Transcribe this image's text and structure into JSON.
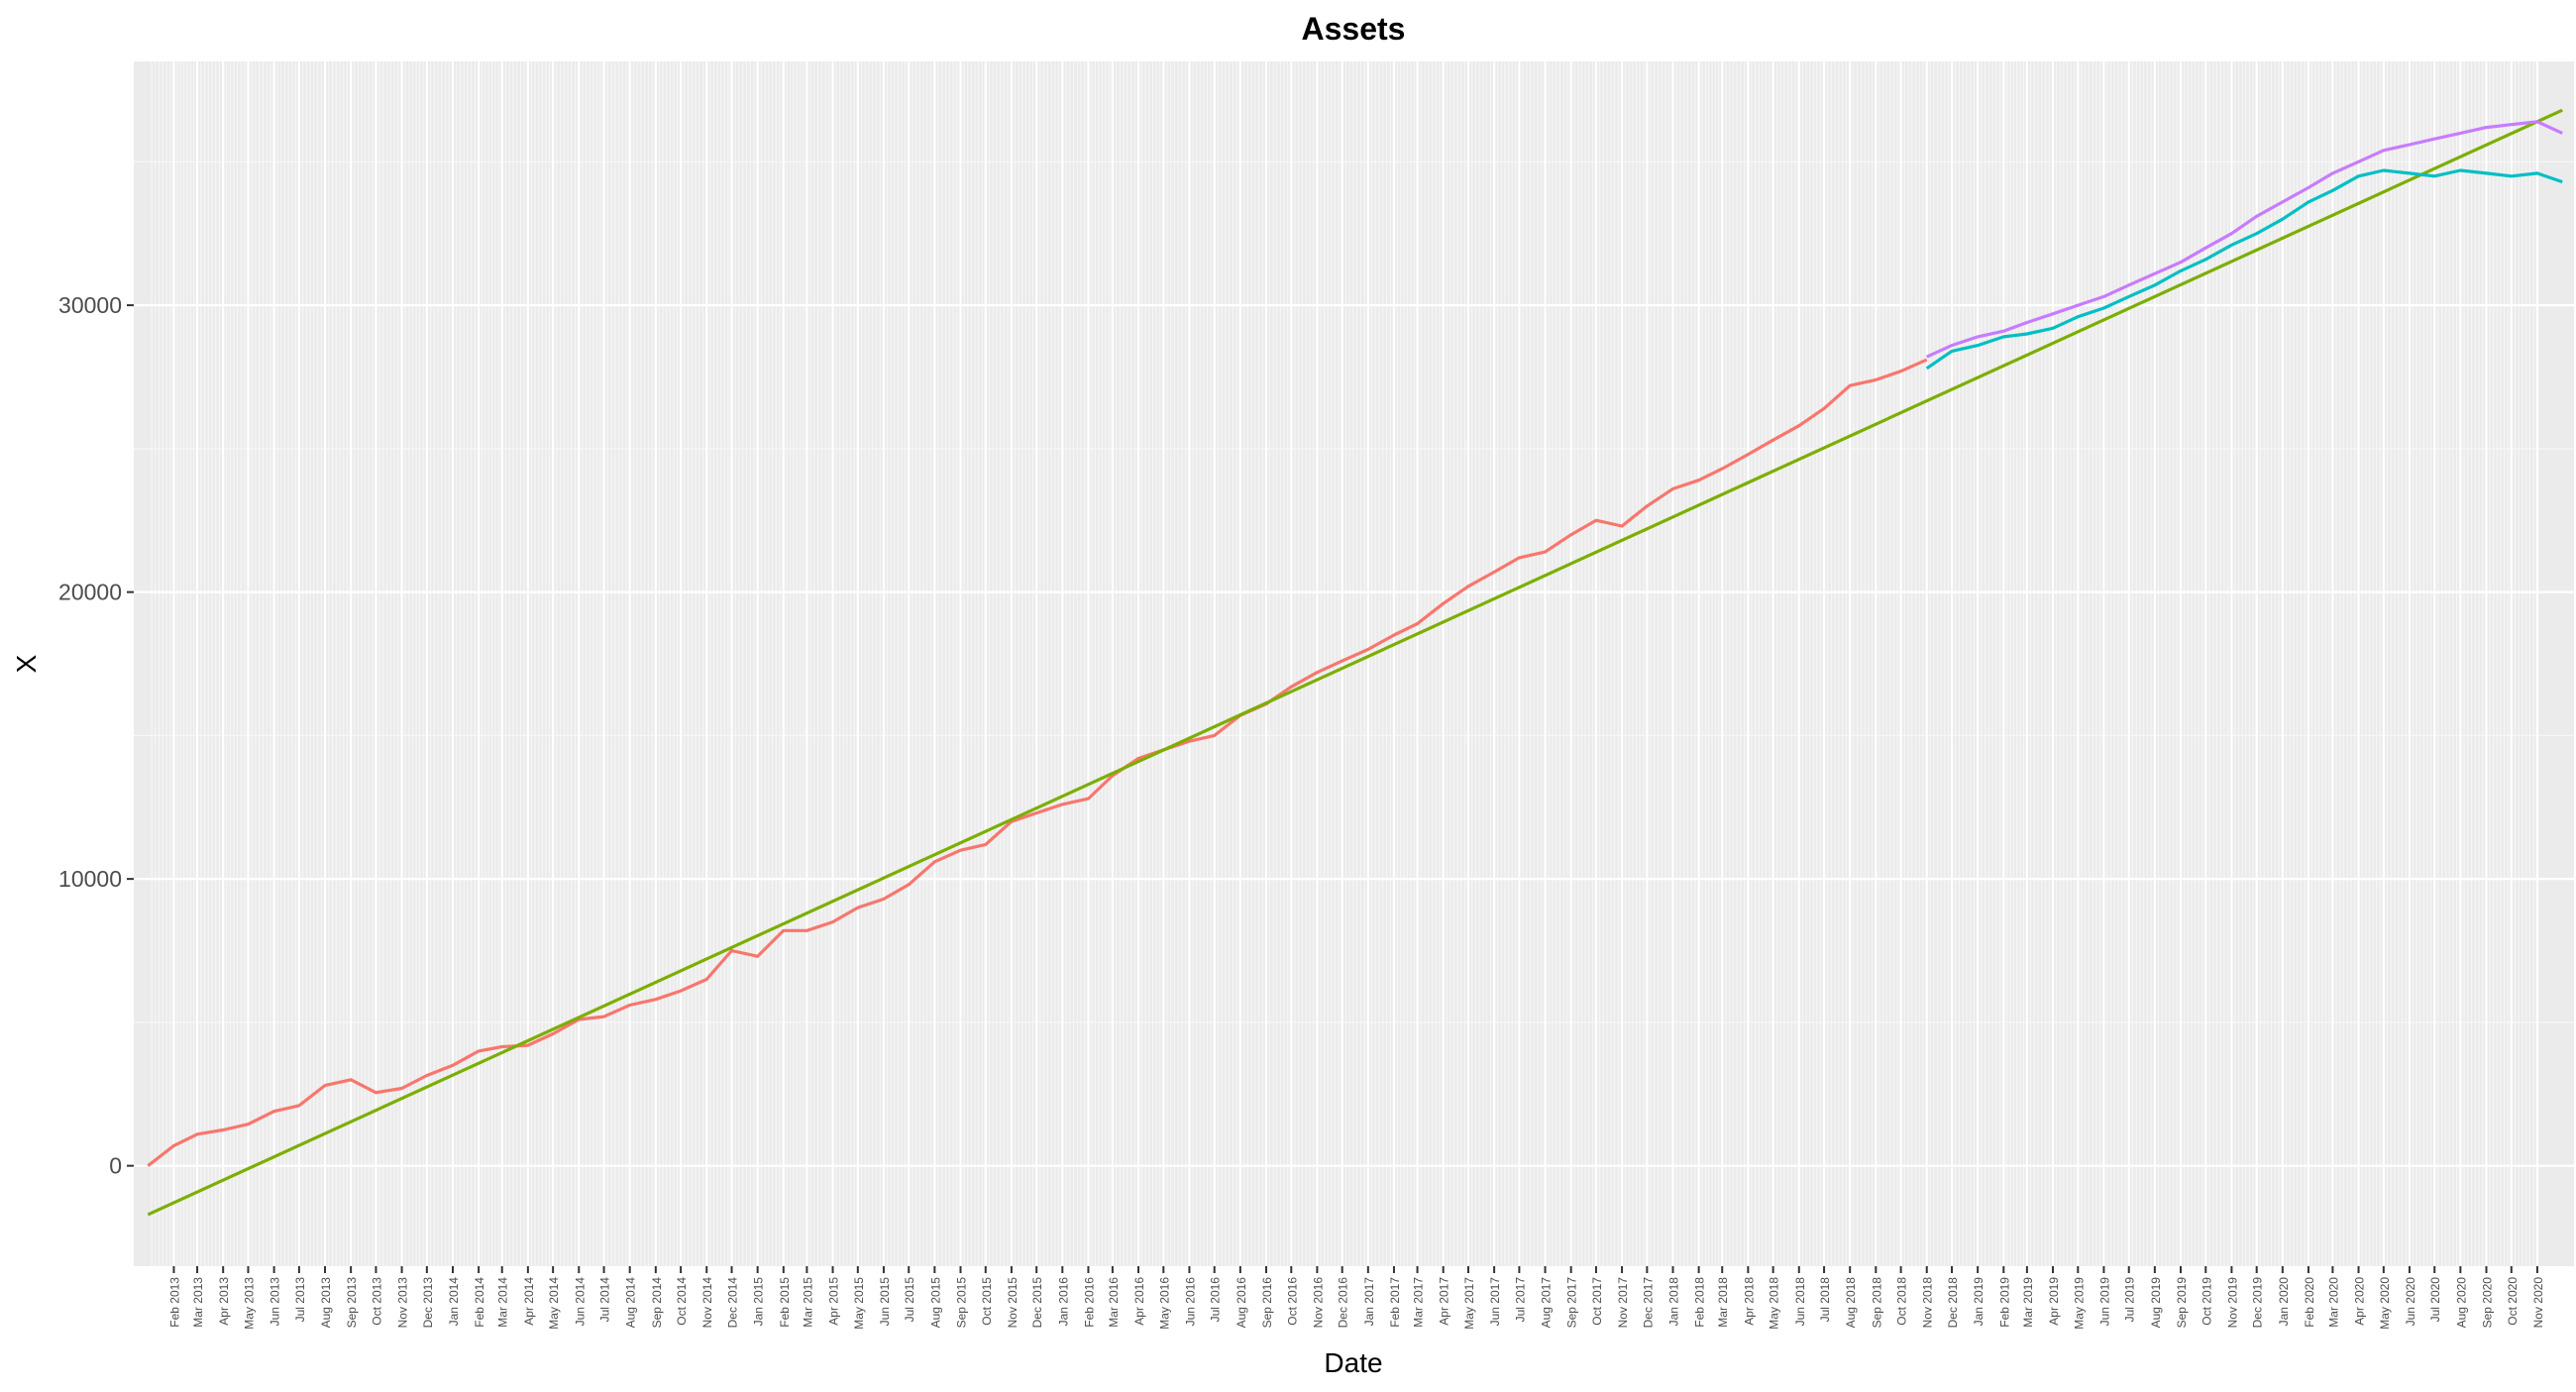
{
  "chart_data": {
    "type": "line",
    "title": "Assets",
    "xlabel": "Date",
    "ylabel": "X",
    "ylim": [
      -3500,
      38500
    ],
    "y_ticks": [
      0,
      10000,
      20000,
      30000
    ],
    "x_range": [
      "2012-12-15",
      "2020-12-15"
    ],
    "x_ticks": [
      "Feb 2013",
      "Mar 2013",
      "Apr 2013",
      "May 2013",
      "Jun 2013",
      "Jul 2013",
      "Aug 2013",
      "Sep 2013",
      "Oct 2013",
      "Nov 2013",
      "Dec 2013",
      "Jan 2014",
      "Feb 2014",
      "Mar 2014",
      "Apr 2014",
      "May 2014",
      "Jun 2014",
      "Jul 2014",
      "Aug 2014",
      "Sep 2014",
      "Oct 2014",
      "Nov 2014",
      "Dec 2014",
      "Jan 2015",
      "Feb 2015",
      "Mar 2015",
      "Apr 2015",
      "May 2015",
      "Jun 2015",
      "Jul 2015",
      "Aug 2015",
      "Sep 2015",
      "Oct 2015",
      "Nov 2015",
      "Dec 2015",
      "Jan 2016",
      "Feb 2016",
      "Mar 2016",
      "Apr 2016",
      "May 2016",
      "Jun 2016",
      "Jul 2016",
      "Aug 2016",
      "Sep 2016",
      "Oct 2016",
      "Nov 2016",
      "Dec 2016",
      "Jan 2017",
      "Feb 2017",
      "Mar 2017",
      "Apr 2017",
      "May 2017",
      "Jun 2017",
      "Jul 2017",
      "Aug 2017",
      "Sep 2017",
      "Oct 2017",
      "Nov 2017",
      "Dec 2017",
      "Jan 2018",
      "Feb 2018",
      "Mar 2018",
      "Apr 2018",
      "May 2018",
      "Jun 2018",
      "Jul 2018",
      "Aug 2018",
      "Sep 2018",
      "Oct 2018",
      "Nov 2018",
      "Dec 2018",
      "Jan 2019",
      "Feb 2019",
      "Mar 2019",
      "Apr 2019",
      "May 2019",
      "Jun 2019",
      "Jul 2019",
      "Aug 2019",
      "Sep 2019",
      "Oct 2019",
      "Nov 2019",
      "Dec 2019",
      "Jan 2020",
      "Feb 2020",
      "Mar 2020",
      "Apr 2020",
      "May 2020",
      "Jun 2020",
      "Jul 2020",
      "Aug 2020",
      "Sep 2020",
      "Oct 2020",
      "Nov 2020"
    ],
    "grid": true,
    "legend": "none",
    "series": [
      {
        "color": "#F8766D",
        "x": [
          "2013-01-01",
          "2013-02-01",
          "2013-03-01",
          "2013-04-01",
          "2013-05-01",
          "2013-06-01",
          "2013-07-01",
          "2013-08-01",
          "2013-09-01",
          "2013-10-01",
          "2013-11-01",
          "2013-12-01",
          "2014-01-01",
          "2014-02-01",
          "2014-03-01",
          "2014-04-01",
          "2014-05-01",
          "2014-06-01",
          "2014-07-01",
          "2014-08-01",
          "2014-09-01",
          "2014-10-01",
          "2014-11-01",
          "2014-12-01",
          "2015-01-01",
          "2015-02-01",
          "2015-03-01",
          "2015-04-01",
          "2015-05-01",
          "2015-06-01",
          "2015-07-01",
          "2015-08-01",
          "2015-09-01",
          "2015-10-01",
          "2015-11-01",
          "2015-12-01",
          "2016-01-01",
          "2016-02-01",
          "2016-03-01",
          "2016-04-01",
          "2016-05-01",
          "2016-06-01",
          "2016-07-01",
          "2016-08-01",
          "2016-09-01",
          "2016-10-01",
          "2016-11-01",
          "2016-12-01",
          "2017-01-01",
          "2017-02-01",
          "2017-03-01",
          "2017-04-01",
          "2017-05-01",
          "2017-06-01",
          "2017-07-01",
          "2017-08-01",
          "2017-09-01",
          "2017-10-01",
          "2017-11-01",
          "2017-12-01",
          "2018-01-01",
          "2018-02-01",
          "2018-03-01",
          "2018-04-01",
          "2018-05-01",
          "2018-06-01",
          "2018-07-01",
          "2018-08-01",
          "2018-09-01",
          "2018-10-01",
          "2018-11-01"
        ],
        "y": [
          0,
          700,
          1100,
          1250,
          1450,
          1900,
          2100,
          2800,
          3000,
          2550,
          2700,
          3150,
          3500,
          4000,
          4150,
          4200,
          4600,
          5100,
          5200,
          5600,
          5800,
          6100,
          6500,
          7500,
          7300,
          8200,
          8200,
          8500,
          9000,
          9300,
          9800,
          10600,
          11000,
          11200,
          12000,
          12300,
          12600,
          12800,
          13600,
          14200,
          14500,
          14800,
          15000,
          15700,
          16100,
          16700,
          17200,
          17600,
          18000,
          18500,
          18900,
          19600,
          20200,
          20700,
          21200,
          21400,
          22000,
          22500,
          22300,
          23000,
          23600,
          23900,
          24300,
          24800,
          25300,
          25800,
          26400,
          27200,
          27400,
          27700,
          28100
        ]
      },
      {
        "color": "#7CAE00",
        "x": [
          "2013-01-01",
          "2020-12-01"
        ],
        "y": [
          -1700,
          36800
        ]
      },
      {
        "color": "#00BFC4",
        "x": [
          "2018-11-01",
          "2018-12-01",
          "2019-01-01",
          "2019-02-01",
          "2019-03-01",
          "2019-04-01",
          "2019-05-01",
          "2019-06-01",
          "2019-07-01",
          "2019-08-01",
          "2019-09-01",
          "2019-10-01",
          "2019-11-01",
          "2019-12-01",
          "2020-01-01",
          "2020-02-01",
          "2020-03-01",
          "2020-04-01",
          "2020-05-01",
          "2020-06-01",
          "2020-07-01",
          "2020-08-01",
          "2020-09-01",
          "2020-10-01",
          "2020-11-01",
          "2020-12-01"
        ],
        "y": [
          27800,
          28400,
          28600,
          28900,
          29000,
          29200,
          29600,
          29900,
          30300,
          30700,
          31200,
          31600,
          32100,
          32500,
          33000,
          33600,
          34000,
          34500,
          34700,
          34600,
          34500,
          34700,
          34600,
          34500,
          34600,
          34300
        ]
      },
      {
        "color": "#C77CFF",
        "x": [
          "2018-11-01",
          "2018-12-01",
          "2019-01-01",
          "2019-02-01",
          "2019-03-01",
          "2019-04-01",
          "2019-05-01",
          "2019-06-01",
          "2019-07-01",
          "2019-08-01",
          "2019-09-01",
          "2019-10-01",
          "2019-11-01",
          "2019-12-01",
          "2020-01-01",
          "2020-02-01",
          "2020-03-01",
          "2020-04-01",
          "2020-05-01",
          "2020-06-01",
          "2020-07-01",
          "2020-08-01",
          "2020-09-01",
          "2020-10-01",
          "2020-11-01",
          "2020-12-01"
        ],
        "y": [
          28200,
          28600,
          28900,
          29100,
          29400,
          29700,
          30000,
          30300,
          30700,
          31100,
          31500,
          32000,
          32500,
          33100,
          33600,
          34100,
          34600,
          35000,
          35400,
          35600,
          35800,
          36000,
          36200,
          36300,
          36400,
          36000
        ]
      }
    ]
  }
}
